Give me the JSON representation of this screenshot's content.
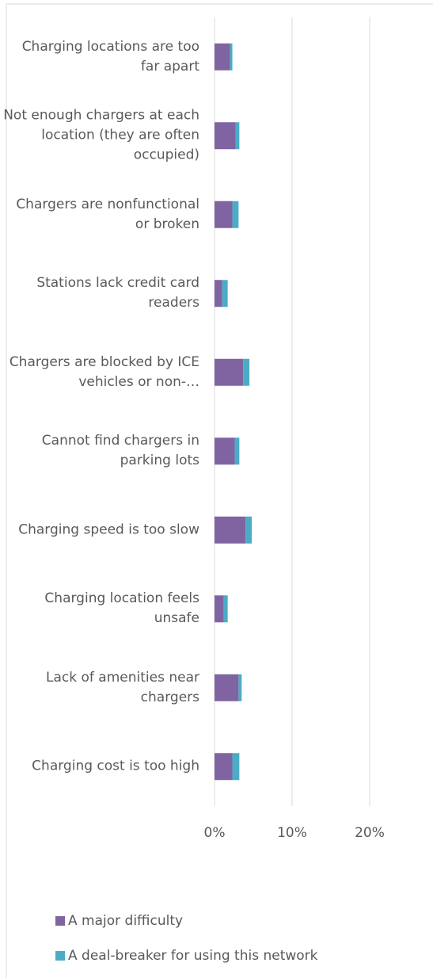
{
  "chart_data": {
    "type": "stacked_barh",
    "categories": [
      "Charging locations are too far apart",
      "Not enough chargers at each location (they are often occupied)",
      "Chargers are nonfunctional or broken",
      "Stations lack credit card readers",
      "Chargers are blocked by ICE vehicles or non-…",
      "Cannot find chargers in parking lots",
      "Charging speed is too slow",
      "Charging location feels unsafe",
      "Lack of amenities near chargers",
      "Charging cost is too high"
    ],
    "series": [
      {
        "name": "A major difficulty",
        "color": "#8064a2",
        "values": [
          2.0,
          2.7,
          2.3,
          1.0,
          3.7,
          2.6,
          4.0,
          1.2,
          3.1,
          2.3
        ]
      },
      {
        "name": "A deal-breaker for using this network",
        "color": "#4bacc6",
        "values": [
          0.3,
          0.5,
          0.8,
          0.7,
          0.8,
          0.6,
          0.8,
          0.5,
          0.4,
          0.9
        ]
      }
    ],
    "xlim": [
      0,
      28
    ],
    "xticks": [
      {
        "value": 0,
        "label": "0%"
      },
      {
        "value": 10,
        "label": "10%"
      },
      {
        "value": 20,
        "label": "20%"
      }
    ],
    "grid": true,
    "legend": "bottom"
  }
}
